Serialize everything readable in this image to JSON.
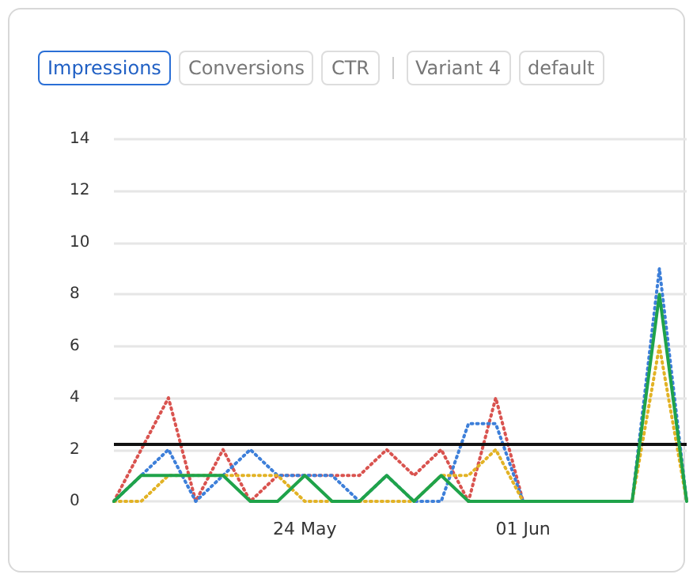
{
  "chart_data": {
    "type": "line",
    "annotations": [
      "Impressions",
      "Conversions",
      "CTR",
      "Variant 4",
      "default"
    ],
    "x": [
      "--05-17",
      "--05-18",
      "--05-19",
      "--05-20",
      "--05-21",
      "--05-22",
      "--05-23",
      "--05-24",
      "--05-25",
      "--05-26",
      "--05-27",
      "--05-28",
      "--05-29",
      "--05-30",
      "--05-31",
      "--06-01",
      "--06-02",
      "--06-03",
      "--06-04",
      "--06-05",
      "--06-06",
      "--06-07"
    ],
    "series": [
      {
        "color": "#d9534f",
        "line_style": "dotted",
        "values": [
          0,
          2,
          4,
          0,
          2,
          0,
          1,
          1,
          1,
          1,
          2,
          1,
          2,
          0,
          4,
          0,
          null,
          null,
          null,
          null,
          null,
          null
        ]
      },
      {
        "color": "#3d7fd9",
        "line_style": "dotted",
        "values": [
          0,
          1,
          2,
          0,
          1,
          2,
          1,
          1,
          1,
          0,
          1,
          0,
          0,
          3,
          3,
          0,
          0,
          0,
          0,
          0,
          9,
          0
        ]
      },
      {
        "color": "#e2b224",
        "line_style": "dotted",
        "values": [
          0,
          0,
          1,
          1,
          1,
          1,
          1,
          0,
          0,
          0,
          0,
          0,
          1,
          1,
          2,
          0,
          0,
          0,
          0,
          0,
          6,
          0
        ]
      },
      {
        "color": "#1fa34a",
        "line_style": "solid",
        "values": [
          0,
          1,
          1,
          1,
          1,
          0,
          0,
          1,
          0,
          0,
          1,
          0,
          1,
          0,
          0,
          0,
          0,
          0,
          0,
          0,
          8,
          0
        ]
      }
    ],
    "xlim": [
      "--05-17",
      "--06-07"
    ],
    "xticks": [
      {
        "value": "--05-24",
        "label": "24 May"
      },
      {
        "value": "--06-01",
        "label": "01 Jun"
      }
    ],
    "ylim": [
      0,
      14
    ],
    "yticks": [
      0,
      2,
      4,
      6,
      8,
      10,
      12,
      14
    ],
    "ref_lines": [
      {
        "axis": "y",
        "value": 2.2,
        "color": "#111111"
      }
    ],
    "grid": "y",
    "marker": "none"
  }
}
